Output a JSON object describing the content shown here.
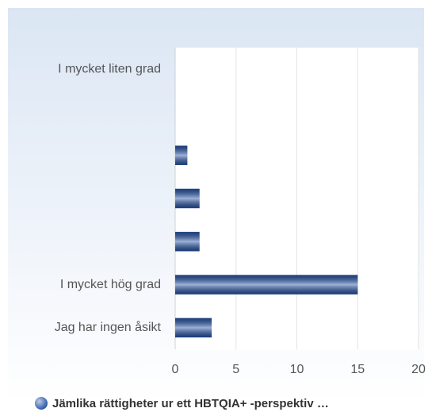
{
  "chart_data": {
    "type": "hbar",
    "categories": [
      "I mycket liten grad",
      null,
      null,
      null,
      null,
      "I mycket hög grad",
      "Jag har ingen åsikt"
    ],
    "series": [
      {
        "name": "Jämlika rättigheter ur ett HBTQIA+ -perspektiv …",
        "color": "#2553a6",
        "values": [
          0,
          0,
          1,
          2,
          2,
          15,
          3
        ]
      }
    ],
    "xlim": [
      0,
      20
    ],
    "xticks": [
      0,
      5,
      10,
      15,
      20
    ],
    "grid": true
  }
}
